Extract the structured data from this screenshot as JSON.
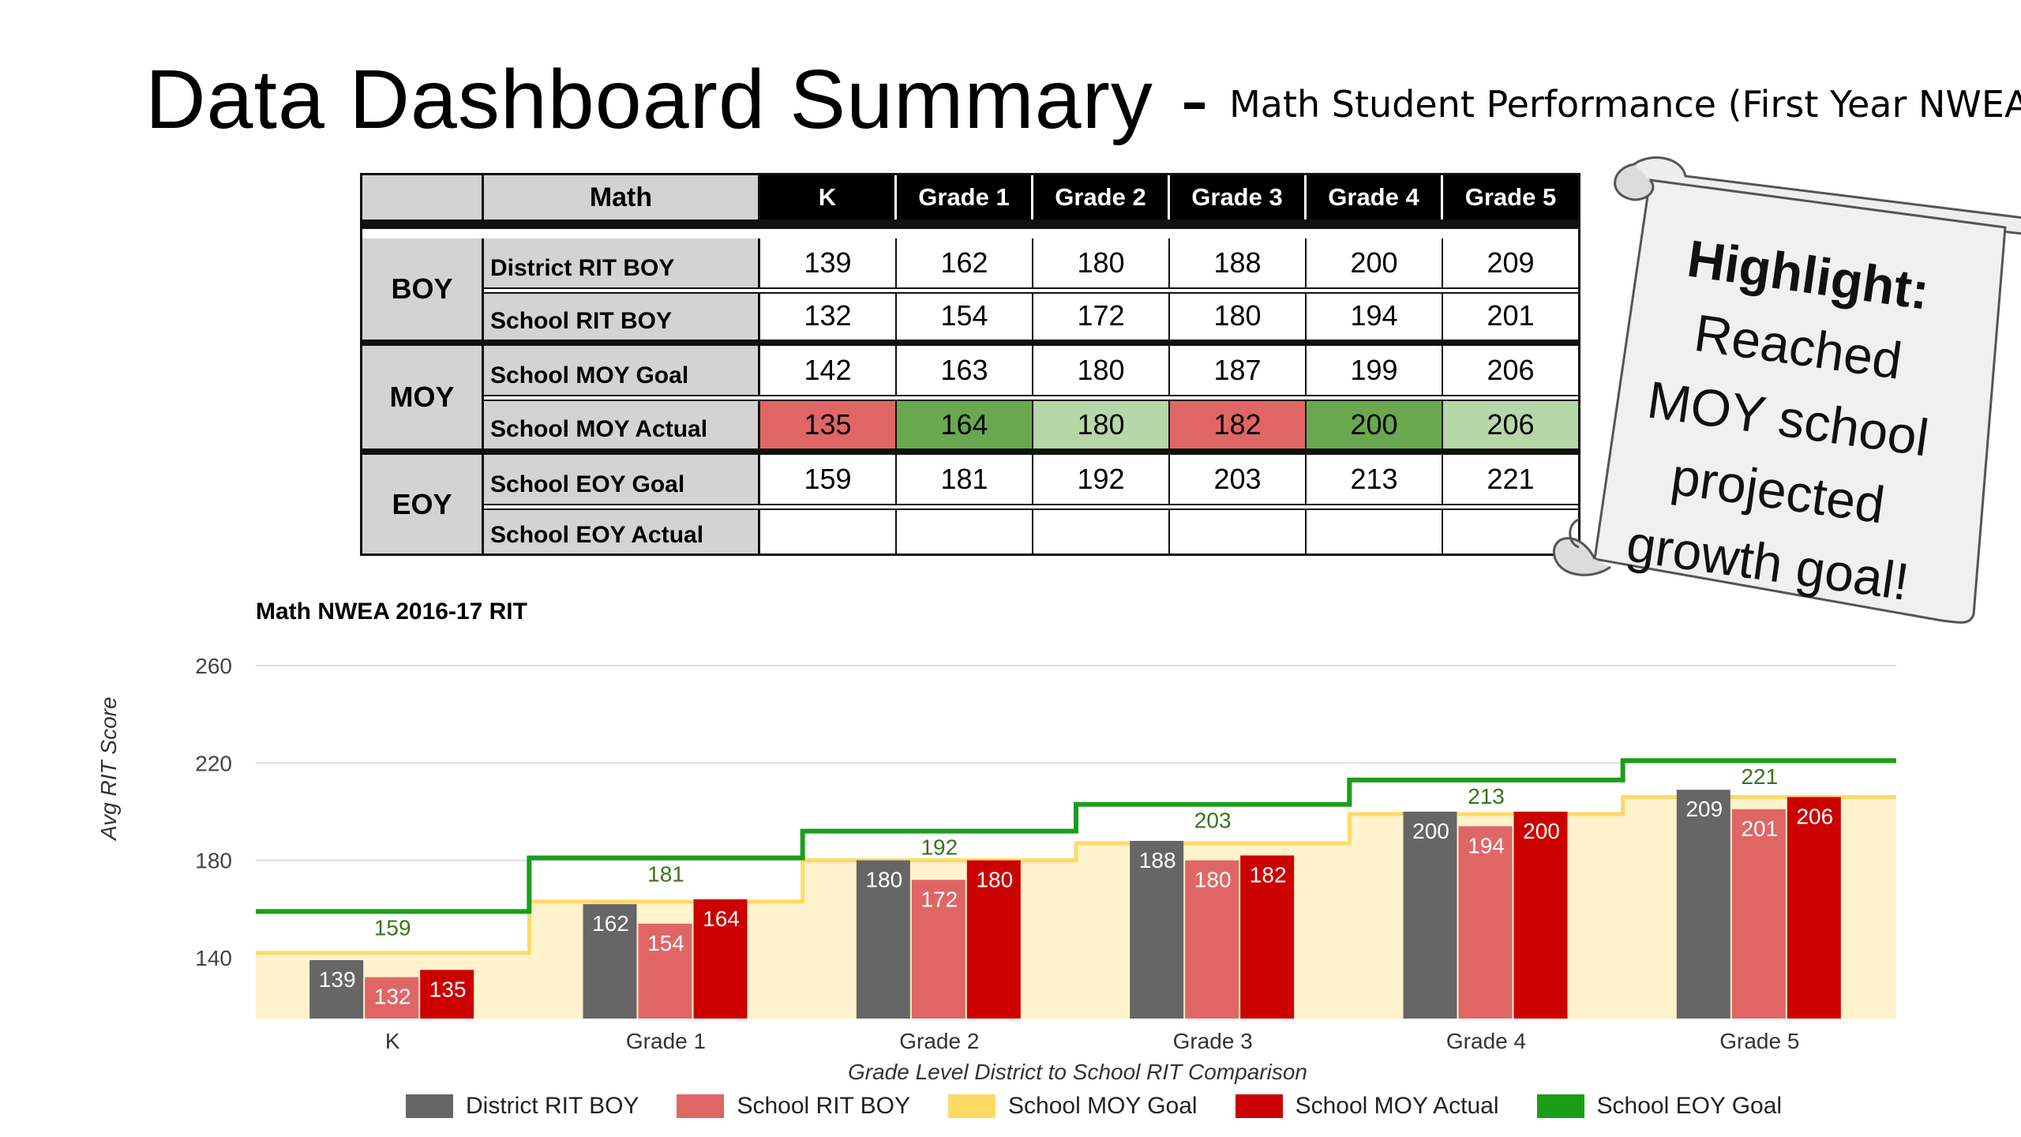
{
  "header": {
    "title": "Data Dashboard Summary",
    "dash": "-",
    "subtitle": "Math Student Performance (First Year NWEA)"
  },
  "table": {
    "corner_label": "Math",
    "columns": [
      "K",
      "Grade 1",
      "Grade 2",
      "Grade 3",
      "Grade 4",
      "Grade 5"
    ],
    "groups": [
      {
        "label": "BOY",
        "rows": [
          {
            "label": "District  RIT BOY",
            "values": [
              "139",
              "162",
              "180",
              "188",
              "200",
              "209"
            ]
          },
          {
            "label": "School RIT BOY",
            "values": [
              "132",
              "154",
              "172",
              "180",
              "194",
              "201"
            ]
          }
        ]
      },
      {
        "label": "MOY",
        "rows": [
          {
            "label": "School MOY Goal",
            "values": [
              "142",
              "163",
              "180",
              "187",
              "199",
              "206"
            ]
          },
          {
            "label": "School MOY Actual",
            "values": [
              "135",
              "164",
              "180",
              "182",
              "200",
              "206"
            ],
            "cell_colors": [
              "#e06666",
              "#6aa84f",
              "#b6d7a8",
              "#e06666",
              "#6aa84f",
              "#b6d7a8"
            ]
          }
        ]
      },
      {
        "label": "EOY",
        "rows": [
          {
            "label": "School EOY Goal",
            "values": [
              "159",
              "181",
              "192",
              "203",
              "213",
              "221"
            ]
          },
          {
            "label": "School EOY Actual",
            "values": [
              "",
              "",
              "",
              "",
              "",
              ""
            ]
          }
        ]
      }
    ]
  },
  "highlight": {
    "label": "Highlight:",
    "lines": [
      "Reached",
      "MOY school",
      "projected",
      "growth goal!"
    ]
  },
  "chart_data": {
    "type": "bar",
    "title": "Math NWEA 2016-17 RIT",
    "xlabel": "Grade Level District to School RIT Comparison",
    "ylabel": "Avg RIT Score",
    "ylim": [
      115,
      260
    ],
    "yticks": [
      140,
      180,
      220,
      260
    ],
    "grid": true,
    "legend_position": "bottom",
    "categories": [
      "K",
      "Grade 1",
      "Grade 2",
      "Grade 3",
      "Grade 4",
      "Grade 5"
    ],
    "series": [
      {
        "name": "District RIT BOY",
        "kind": "bar",
        "color": "#666666",
        "values": [
          139,
          162,
          180,
          188,
          200,
          209
        ]
      },
      {
        "name": "School RIT BOY",
        "kind": "bar",
        "color": "#e06666",
        "values": [
          132,
          154,
          172,
          180,
          194,
          201
        ]
      },
      {
        "name": "School MOY Goal",
        "kind": "stepped-area",
        "color": "#ffd966",
        "values": [
          142,
          163,
          180,
          187,
          199,
          206
        ]
      },
      {
        "name": "School MOY Actual",
        "kind": "bar",
        "color": "#cc0000",
        "values": [
          135,
          164,
          180,
          182,
          200,
          206
        ]
      },
      {
        "name": "School EOY Goal",
        "kind": "stepped-line",
        "color": "#1a9e1a",
        "values": [
          159,
          181,
          192,
          203,
          213,
          221
        ]
      }
    ]
  }
}
